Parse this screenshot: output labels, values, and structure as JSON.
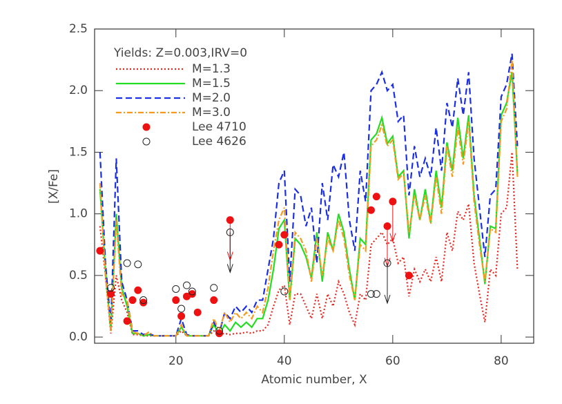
{
  "chart_data": {
    "type": "line",
    "x_label": "Atomic number, X",
    "y_label": "[X/Fe]",
    "legend_title": "Yields: Z=0.003,IRV=0",
    "legend": "upper left",
    "xlim": [
      5,
      86
    ],
    "xticks": [
      20,
      40,
      60,
      80
    ],
    "ylim": [
      -0.05,
      2.5
    ],
    "yticks": [
      {
        "value": 0,
        "label": "0.0"
      },
      {
        "value": 0.5,
        "label": "0.5"
      },
      {
        "value": 1,
        "label": "1.0"
      },
      {
        "value": 1.5,
        "label": "1.5"
      },
      {
        "value": 2,
        "label": "2.0"
      },
      {
        "value": 2.5,
        "label": "2.5"
      }
    ],
    "x": [
      6,
      7,
      8,
      9,
      10,
      11,
      12,
      13,
      14,
      15,
      16,
      17,
      18,
      19,
      20,
      21,
      22,
      23,
      24,
      25,
      26,
      27,
      28,
      29,
      30,
      31,
      32,
      33,
      34,
      35,
      36,
      37,
      38,
      39,
      40,
      41,
      42,
      43,
      44,
      45,
      46,
      47,
      48,
      49,
      50,
      51,
      52,
      53,
      54,
      55,
      56,
      57,
      58,
      59,
      60,
      61,
      62,
      63,
      64,
      65,
      66,
      67,
      68,
      69,
      70,
      71,
      72,
      73,
      74,
      75,
      76,
      77,
      78,
      79,
      80,
      81,
      82,
      83
    ],
    "series": [
      {
        "name": "M=1.3",
        "color": "#e8241c",
        "style": "dotted",
        "values": [
          0.9,
          0.5,
          0.03,
          0.5,
          0.3,
          0.2,
          0.02,
          0.02,
          0.01,
          0.01,
          0.01,
          0.01,
          0.01,
          0.01,
          0.01,
          0.05,
          0.01,
          0.01,
          0.01,
          0.01,
          0.01,
          0.05,
          0.02,
          0.03,
          0.02,
          0.03,
          0.03,
          0.04,
          0.03,
          0.05,
          0.05,
          0.1,
          0.25,
          0.38,
          0.42,
          0.1,
          0.35,
          0.35,
          0.25,
          0.15,
          0.35,
          0.15,
          0.35,
          0.25,
          0.45,
          0.35,
          0.2,
          0.1,
          0.35,
          0.3,
          0.75,
          0.8,
          0.85,
          0.75,
          0.8,
          0.6,
          0.65,
          0.33,
          0.55,
          0.45,
          0.55,
          0.45,
          0.65,
          0.45,
          0.85,
          0.7,
          1.02,
          0.95,
          1.08,
          0.6,
          0.35,
          0.12,
          0.55,
          0.5,
          1.0,
          1.05,
          1.5,
          0.55
        ]
      },
      {
        "name": "M=1.5",
        "color": "#22dd22",
        "style": "solid",
        "values": [
          1.2,
          0.55,
          0.05,
          1.0,
          0.4,
          0.25,
          0.03,
          0.03,
          0.01,
          0.02,
          0.01,
          0.01,
          0.01,
          0.01,
          0.01,
          0.08,
          0.01,
          0.01,
          0.01,
          0.01,
          0.01,
          0.1,
          0.02,
          0.1,
          0.05,
          0.12,
          0.08,
          0.12,
          0.08,
          0.15,
          0.15,
          0.3,
          0.55,
          0.88,
          0.95,
          0.3,
          0.8,
          0.75,
          0.65,
          0.48,
          0.85,
          0.45,
          0.85,
          0.7,
          1.0,
          0.85,
          0.55,
          0.3,
          0.8,
          0.75,
          1.6,
          1.65,
          1.78,
          1.57,
          1.63,
          1.3,
          1.35,
          0.8,
          1.2,
          0.95,
          1.2,
          0.93,
          1.35,
          1.05,
          1.58,
          1.35,
          1.78,
          1.45,
          1.8,
          1.15,
          0.8,
          0.43,
          0.9,
          0.88,
          1.8,
          1.9,
          2.15,
          1.33
        ]
      },
      {
        "name": "M=2.0",
        "color": "#1a2ee6",
        "style": "dashed",
        "values": [
          1.5,
          0.6,
          0.1,
          1.45,
          0.45,
          0.3,
          0.05,
          0.05,
          0.02,
          0.03,
          0.01,
          0.01,
          0.01,
          0.01,
          0.01,
          0.15,
          0.02,
          0.01,
          0.01,
          0.01,
          0.01,
          0.12,
          0.03,
          0.2,
          0.15,
          0.25,
          0.2,
          0.25,
          0.2,
          0.3,
          0.3,
          0.55,
          0.8,
          1.25,
          1.35,
          0.45,
          1.2,
          1.15,
          0.9,
          1.05,
          0.6,
          1.25,
          0.95,
          1.4,
          1.3,
          1.5,
          0.95,
          0.7,
          1.35,
          1.1,
          2.0,
          2.05,
          2.15,
          2.0,
          2.05,
          1.75,
          1.8,
          1.15,
          1.55,
          1.3,
          1.45,
          1.3,
          1.7,
          1.35,
          1.9,
          1.7,
          2.1,
          1.8,
          2.15,
          1.45,
          1.05,
          0.65,
          1.15,
          1.2,
          1.95,
          2.05,
          2.3,
          1.55
        ]
      },
      {
        "name": "M=3.0",
        "color": "#f59a1f",
        "style": "dashdot",
        "values": [
          1.25,
          0.5,
          0.05,
          0.95,
          0.35,
          0.3,
          0.04,
          0.03,
          0.01,
          0.04,
          0.01,
          0.01,
          0.01,
          0.01,
          0.01,
          0.1,
          0.01,
          0.01,
          0.01,
          0.01,
          0.01,
          0.15,
          0.05,
          0.2,
          0.12,
          0.2,
          0.15,
          0.2,
          0.15,
          0.25,
          0.2,
          0.4,
          0.7,
          0.95,
          1.05,
          0.3,
          0.85,
          0.8,
          0.7,
          0.45,
          0.8,
          0.5,
          0.8,
          0.7,
          0.95,
          0.8,
          0.5,
          0.3,
          0.75,
          0.7,
          1.55,
          1.6,
          1.72,
          1.55,
          1.6,
          1.28,
          1.33,
          0.85,
          1.15,
          0.95,
          1.15,
          0.92,
          1.3,
          1.0,
          1.55,
          1.3,
          1.7,
          1.4,
          1.75,
          1.1,
          0.75,
          0.45,
          0.88,
          0.85,
          1.75,
          1.85,
          2.25,
          1.3
        ]
      },
      {
        "name": "Lee 4710",
        "color": "#ee1111",
        "marker": "filled",
        "x": [
          6,
          8,
          11,
          12,
          13,
          14,
          20,
          21,
          22,
          23,
          24,
          27,
          28,
          30,
          39,
          40,
          56,
          57,
          59,
          60,
          63
        ],
        "values": [
          0.7,
          0.35,
          0.13,
          0.3,
          0.38,
          0.28,
          0.3,
          0.17,
          0.33,
          0.35,
          0.2,
          0.3,
          0.03,
          0.95,
          0.75,
          0.83,
          1.03,
          1.14,
          0.9,
          1.1,
          0.5
        ],
        "upper_limit": [
          false,
          false,
          false,
          false,
          false,
          false,
          false,
          false,
          false,
          false,
          false,
          false,
          false,
          true,
          false,
          false,
          false,
          false,
          true,
          true,
          false
        ]
      },
      {
        "name": "Lee 4626",
        "color": "#222222",
        "marker": "open",
        "x": [
          8,
          11,
          13,
          14,
          20,
          21,
          22,
          23,
          27,
          28,
          30,
          40,
          56,
          57,
          59
        ],
        "values": [
          0.4,
          0.6,
          0.59,
          0.3,
          0.39,
          0.23,
          0.42,
          0.37,
          0.4,
          0.05,
          0.85,
          0.37,
          0.35,
          0.35,
          0.6
        ],
        "upper_limit": [
          false,
          false,
          false,
          false,
          false,
          false,
          false,
          false,
          false,
          false,
          true,
          false,
          false,
          false,
          true
        ]
      }
    ]
  }
}
